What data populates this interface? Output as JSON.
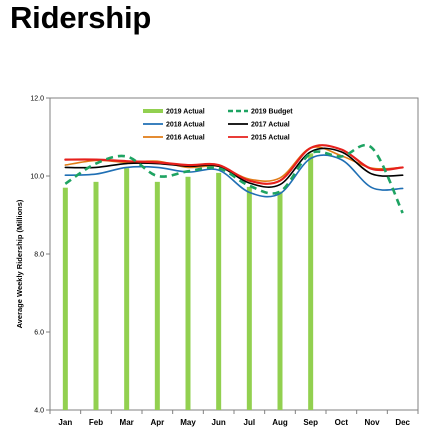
{
  "page": {
    "title": "Ridership"
  },
  "chart_data": {
    "type": "bar",
    "title": "",
    "xlabel": "",
    "ylabel": "Average Weekly Ridership (Millions)",
    "ylim": [
      4.0,
      12.0
    ],
    "yticks": [
      "4.0",
      "6.0",
      "8.0",
      "10.0",
      "12.0"
    ],
    "categories": [
      "Jan",
      "Feb",
      "Mar",
      "Apr",
      "May",
      "Jun",
      "Jul",
      "Aug",
      "Sep",
      "Oct",
      "Nov",
      "Dec"
    ],
    "grid": false,
    "legend_position": "top-center",
    "series": [
      {
        "name": "2019 Actual",
        "kind": "bar",
        "color": "#92d050",
        "values": [
          9.7,
          9.85,
          10.2,
          9.85,
          9.98,
          10.08,
          9.72,
          9.6,
          10.58,
          null,
          null,
          null
        ]
      },
      {
        "name": "2019 Budget",
        "kind": "line",
        "style": "dashed",
        "color": "#1ea362",
        "values": [
          9.8,
          10.32,
          10.5,
          10.0,
          10.12,
          10.2,
          9.75,
          9.6,
          10.58,
          10.5,
          10.72,
          9.05
        ]
      },
      {
        "name": "2018 Actual",
        "kind": "line",
        "style": "solid",
        "color": "#1f6fb4",
        "values": [
          10.02,
          10.05,
          10.22,
          10.22,
          10.1,
          10.15,
          9.58,
          9.55,
          10.45,
          10.42,
          9.7,
          9.68
        ]
      },
      {
        "name": "2017 Actual",
        "kind": "line",
        "style": "solid",
        "color": "#000000",
        "values": [
          10.22,
          10.22,
          10.32,
          10.32,
          10.25,
          10.25,
          9.82,
          9.78,
          10.62,
          10.62,
          10.05,
          10.02
        ]
      },
      {
        "name": "2016 Actual",
        "kind": "line",
        "style": "solid",
        "color": "#e07b16",
        "values": [
          10.28,
          10.4,
          10.35,
          10.38,
          10.22,
          10.25,
          9.92,
          9.95,
          10.72,
          10.52,
          10.2,
          10.22
        ]
      },
      {
        "name": "2015 Actual",
        "kind": "line",
        "style": "solid",
        "color": "#e6201c",
        "values": [
          10.42,
          10.42,
          10.38,
          10.35,
          10.28,
          10.28,
          9.88,
          9.88,
          10.72,
          10.68,
          10.18,
          10.22
        ]
      }
    ]
  }
}
